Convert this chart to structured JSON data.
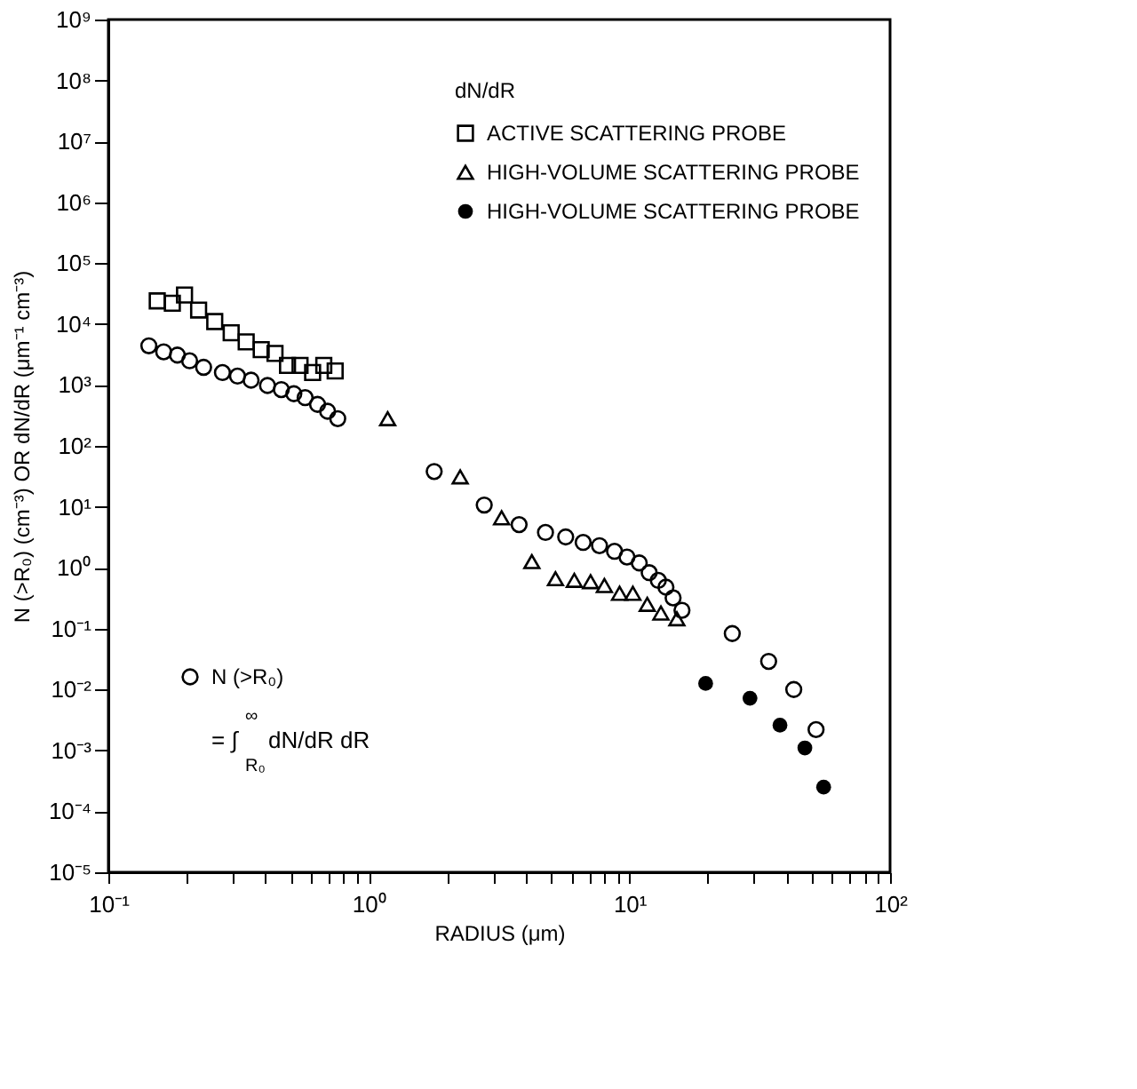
{
  "chart_data": {
    "type": "scatter",
    "xlabel": "RADIUS (μm)",
    "ylabel": "N (>R₀) (cm⁻³)   OR   dN/dR (μm⁻¹ cm⁻³)",
    "legend_title": "dN/dR",
    "legend": "top right",
    "log": "xy",
    "grid": false,
    "xlim": [
      0.1,
      100
    ],
    "ylim": [
      1e-05,
      1000000000
    ],
    "xticks": [
      {
        "value": 0.1,
        "label": "10⁻¹"
      },
      {
        "value": 0.2,
        "label": null
      },
      {
        "value": 0.3,
        "label": null
      },
      {
        "value": 0.4,
        "label": null
      },
      {
        "value": 0.5,
        "label": null
      },
      {
        "value": 0.6,
        "label": null
      },
      {
        "value": 0.7,
        "label": null
      },
      {
        "value": 0.8,
        "label": null
      },
      {
        "value": 0.9,
        "label": null
      },
      {
        "value": 1,
        "label": "10⁰"
      },
      {
        "value": 2,
        "label": null
      },
      {
        "value": 3,
        "label": null
      },
      {
        "value": 4,
        "label": null
      },
      {
        "value": 5,
        "label": null
      },
      {
        "value": 6,
        "label": null
      },
      {
        "value": 7,
        "label": null
      },
      {
        "value": 8,
        "label": null
      },
      {
        "value": 9,
        "label": null
      },
      {
        "value": 10,
        "label": "10¹"
      },
      {
        "value": 20,
        "label": null
      },
      {
        "value": 30,
        "label": null
      },
      {
        "value": 40,
        "label": null
      },
      {
        "value": 50,
        "label": null
      },
      {
        "value": 60,
        "label": null
      },
      {
        "value": 70,
        "label": null
      },
      {
        "value": 80,
        "label": null
      },
      {
        "value": 90,
        "label": null
      },
      {
        "value": 100,
        "label": "10²"
      }
    ],
    "yticks": [
      {
        "value": 1e-05,
        "label": "10⁻⁵"
      },
      {
        "value": 0.0001,
        "label": "10⁻⁴"
      },
      {
        "value": 0.001,
        "label": "10⁻³"
      },
      {
        "value": 0.01,
        "label": "10⁻²"
      },
      {
        "value": 0.1,
        "label": "10⁻¹"
      },
      {
        "value": 1,
        "label": "10⁰"
      },
      {
        "value": 10,
        "label": "10¹"
      },
      {
        "value": 100,
        "label": "10²"
      },
      {
        "value": 1000,
        "label": "10³"
      },
      {
        "value": 10000,
        "label": "10⁴"
      },
      {
        "value": 100000,
        "label": "10⁵"
      },
      {
        "value": 1000000,
        "label": "10⁶"
      },
      {
        "value": 10000000,
        "label": "10⁷"
      },
      {
        "value": 100000000,
        "label": "10⁸"
      },
      {
        "value": 1000000000,
        "label": "10⁹"
      }
    ],
    "series": [
      {
        "name": "N (>R₀)",
        "color": "#000000",
        "marker": "circle",
        "x": [
          0.143,
          0.163,
          0.184,
          0.205,
          0.232,
          0.274,
          0.313,
          0.353,
          0.408,
          0.461,
          0.515,
          0.569,
          0.635,
          0.694,
          0.759,
          1.78,
          2.77,
          3.77,
          4.76,
          5.69,
          6.64,
          7.67,
          8.76,
          9.78,
          10.9,
          11.9,
          12.9,
          13.8,
          14.7,
          15.9,
          24.8,
          34.2,
          42.7,
          52
        ],
        "values": [
          4400,
          3500,
          3100,
          2500,
          1950,
          1600,
          1400,
          1200,
          980,
          840,
          720,
          620,
          480,
          370,
          280,
          38,
          10.7,
          5.1,
          3.8,
          3.2,
          2.6,
          2.3,
          1.86,
          1.5,
          1.2,
          0.83,
          0.62,
          0.48,
          0.32,
          0.2,
          0.083,
          0.029,
          0.01,
          0.0022
        ]
      },
      {
        "name": "ACTIVE SCATTERING PROBE",
        "color": "#000000",
        "marker": "square",
        "x": [
          0.154,
          0.176,
          0.196,
          0.222,
          0.256,
          0.296,
          0.338,
          0.386,
          0.436,
          0.487,
          0.544,
          0.608,
          0.671,
          0.742
        ],
        "values": [
          24000,
          22000,
          30000,
          17000,
          11000,
          7200,
          5100,
          3800,
          3300,
          2100,
          2100,
          1600,
          2100,
          1700
        ]
      },
      {
        "name": "HIGH-VOLUME SCATTERING PROBE",
        "color": "#000000",
        "marker": "triangle",
        "x": [
          1.18,
          2.24,
          3.23,
          4.22,
          5.2,
          6.14,
          7.09,
          8.01,
          9.16,
          10.3,
          11.7,
          13.2,
          15.2
        ],
        "values": [
          280,
          31,
          6.6,
          1.26,
          0.66,
          0.62,
          0.59,
          0.51,
          0.38,
          0.38,
          0.25,
          0.18,
          0.145
        ]
      },
      {
        "name": "HIGH-VOLUME SCATTERING PROBE",
        "color": "#000000",
        "marker": "circle",
        "x": [
          19.6,
          29,
          37.8,
          47.1,
          55.6
        ],
        "values": [
          0.0126,
          0.0072,
          0.0026,
          0.0011,
          0.00025
        ]
      }
    ],
    "annotations": [
      "= ∫$_{R₀}$$^{∞}$ dN/dR dR"
    ]
  }
}
